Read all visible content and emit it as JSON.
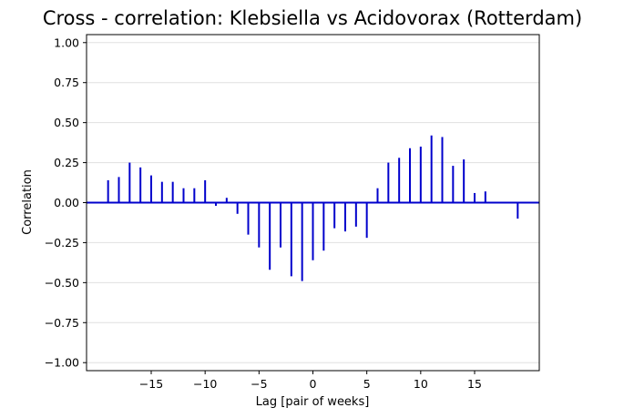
{
  "chart_data": {
    "type": "stem",
    "title": "Cross - correlation: Klebsiella vs Acidovorax (Rotterdam)",
    "xlabel": "Lag [pair of weeks]",
    "ylabel": "Correlation",
    "xlim": [
      -21,
      21
    ],
    "ylim": [
      -1.05,
      1.05
    ],
    "xticks": [
      -15,
      -10,
      -5,
      0,
      5,
      10,
      15
    ],
    "xtick_labels": [
      "−15",
      "−10",
      "−5",
      "0",
      "5",
      "10",
      "15"
    ],
    "yticks": [
      -1.0,
      -0.75,
      -0.5,
      -0.25,
      0.0,
      0.25,
      0.5,
      0.75,
      1.0
    ],
    "ytick_labels": [
      "−1.00",
      "−0.75",
      "−0.50",
      "−0.25",
      "0.00",
      "0.25",
      "0.50",
      "0.75",
      "1.00"
    ],
    "grid": "horizontal",
    "line_color": "#0000cc",
    "grid_color": "#e0e0e0",
    "series": [
      {
        "x": [
          -19,
          -18,
          -17,
          -16,
          -15,
          -14,
          -13,
          -12,
          -11,
          -10,
          -9,
          -8,
          -7,
          -6,
          -5,
          -4,
          -3,
          -2,
          -1,
          0,
          1,
          2,
          3,
          4,
          5,
          6,
          7,
          8,
          9,
          10,
          11,
          12,
          13,
          14,
          15,
          16,
          19
        ],
        "values": [
          0.14,
          0.16,
          0.25,
          0.22,
          0.17,
          0.13,
          0.13,
          0.09,
          0.09,
          0.14,
          -0.02,
          0.03,
          -0.07,
          -0.2,
          -0.28,
          -0.42,
          -0.28,
          -0.46,
          -0.49,
          -0.36,
          -0.3,
          -0.16,
          -0.18,
          -0.15,
          -0.22,
          0.09,
          0.25,
          0.28,
          0.34,
          0.35,
          0.42,
          0.41,
          0.23,
          0.27,
          0.06,
          0.07,
          -0.1
        ]
      }
    ]
  }
}
